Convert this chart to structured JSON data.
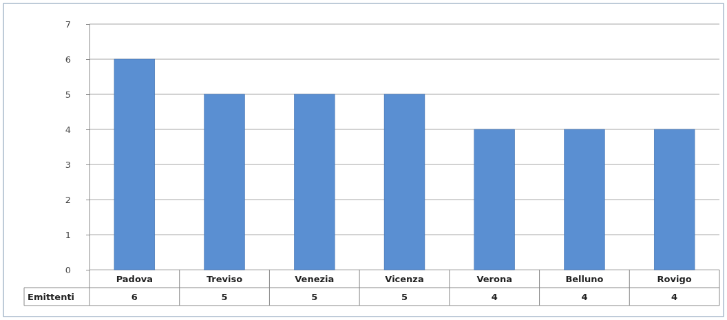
{
  "chart_data": {
    "type": "bar",
    "categories": [
      "Padova",
      "Treviso",
      "Venezia",
      "Vicenza",
      "Verona",
      "Belluno",
      "Rovigo"
    ],
    "series": [
      {
        "name": "Emittenti",
        "color": "#5a8fd2",
        "values": [
          6,
          5,
          5,
          5,
          4,
          4,
          4
        ]
      }
    ],
    "ylim": [
      0,
      7
    ],
    "yticks": [
      0,
      1,
      2,
      3,
      4,
      5,
      6,
      7
    ],
    "grid": "y",
    "data_labels": true
  }
}
